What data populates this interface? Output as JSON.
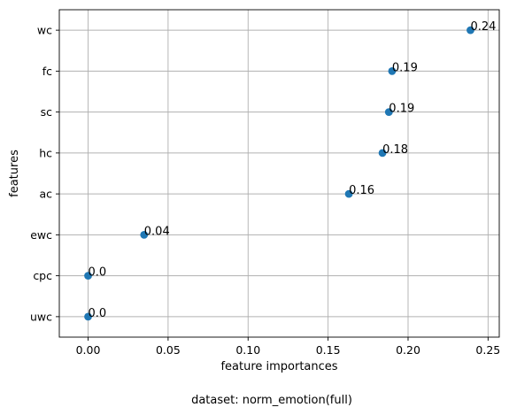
{
  "chart_data": {
    "type": "scatter",
    "xlabel": "feature importances",
    "ylabel": "features",
    "caption": "dataset: norm_emotion(full)",
    "xlim": [
      -0.018,
      0.257
    ],
    "x_ticks": [
      0.0,
      0.05,
      0.1,
      0.15,
      0.2,
      0.25
    ],
    "x_tick_labels": [
      "0.00",
      "0.05",
      "0.10",
      "0.15",
      "0.20",
      "0.25"
    ],
    "categories": [
      "wc",
      "fc",
      "sc",
      "hc",
      "ac",
      "ewc",
      "cpc",
      "uwc"
    ],
    "values": [
      0.239,
      0.19,
      0.188,
      0.184,
      0.163,
      0.035,
      0.0,
      0.0
    ],
    "data_labels": [
      "0.24",
      "0.19",
      "0.19",
      "0.18",
      "0.16",
      "0.04",
      "0.0",
      "0.0"
    ],
    "grid": true,
    "marker_color": "#1f77b4"
  }
}
